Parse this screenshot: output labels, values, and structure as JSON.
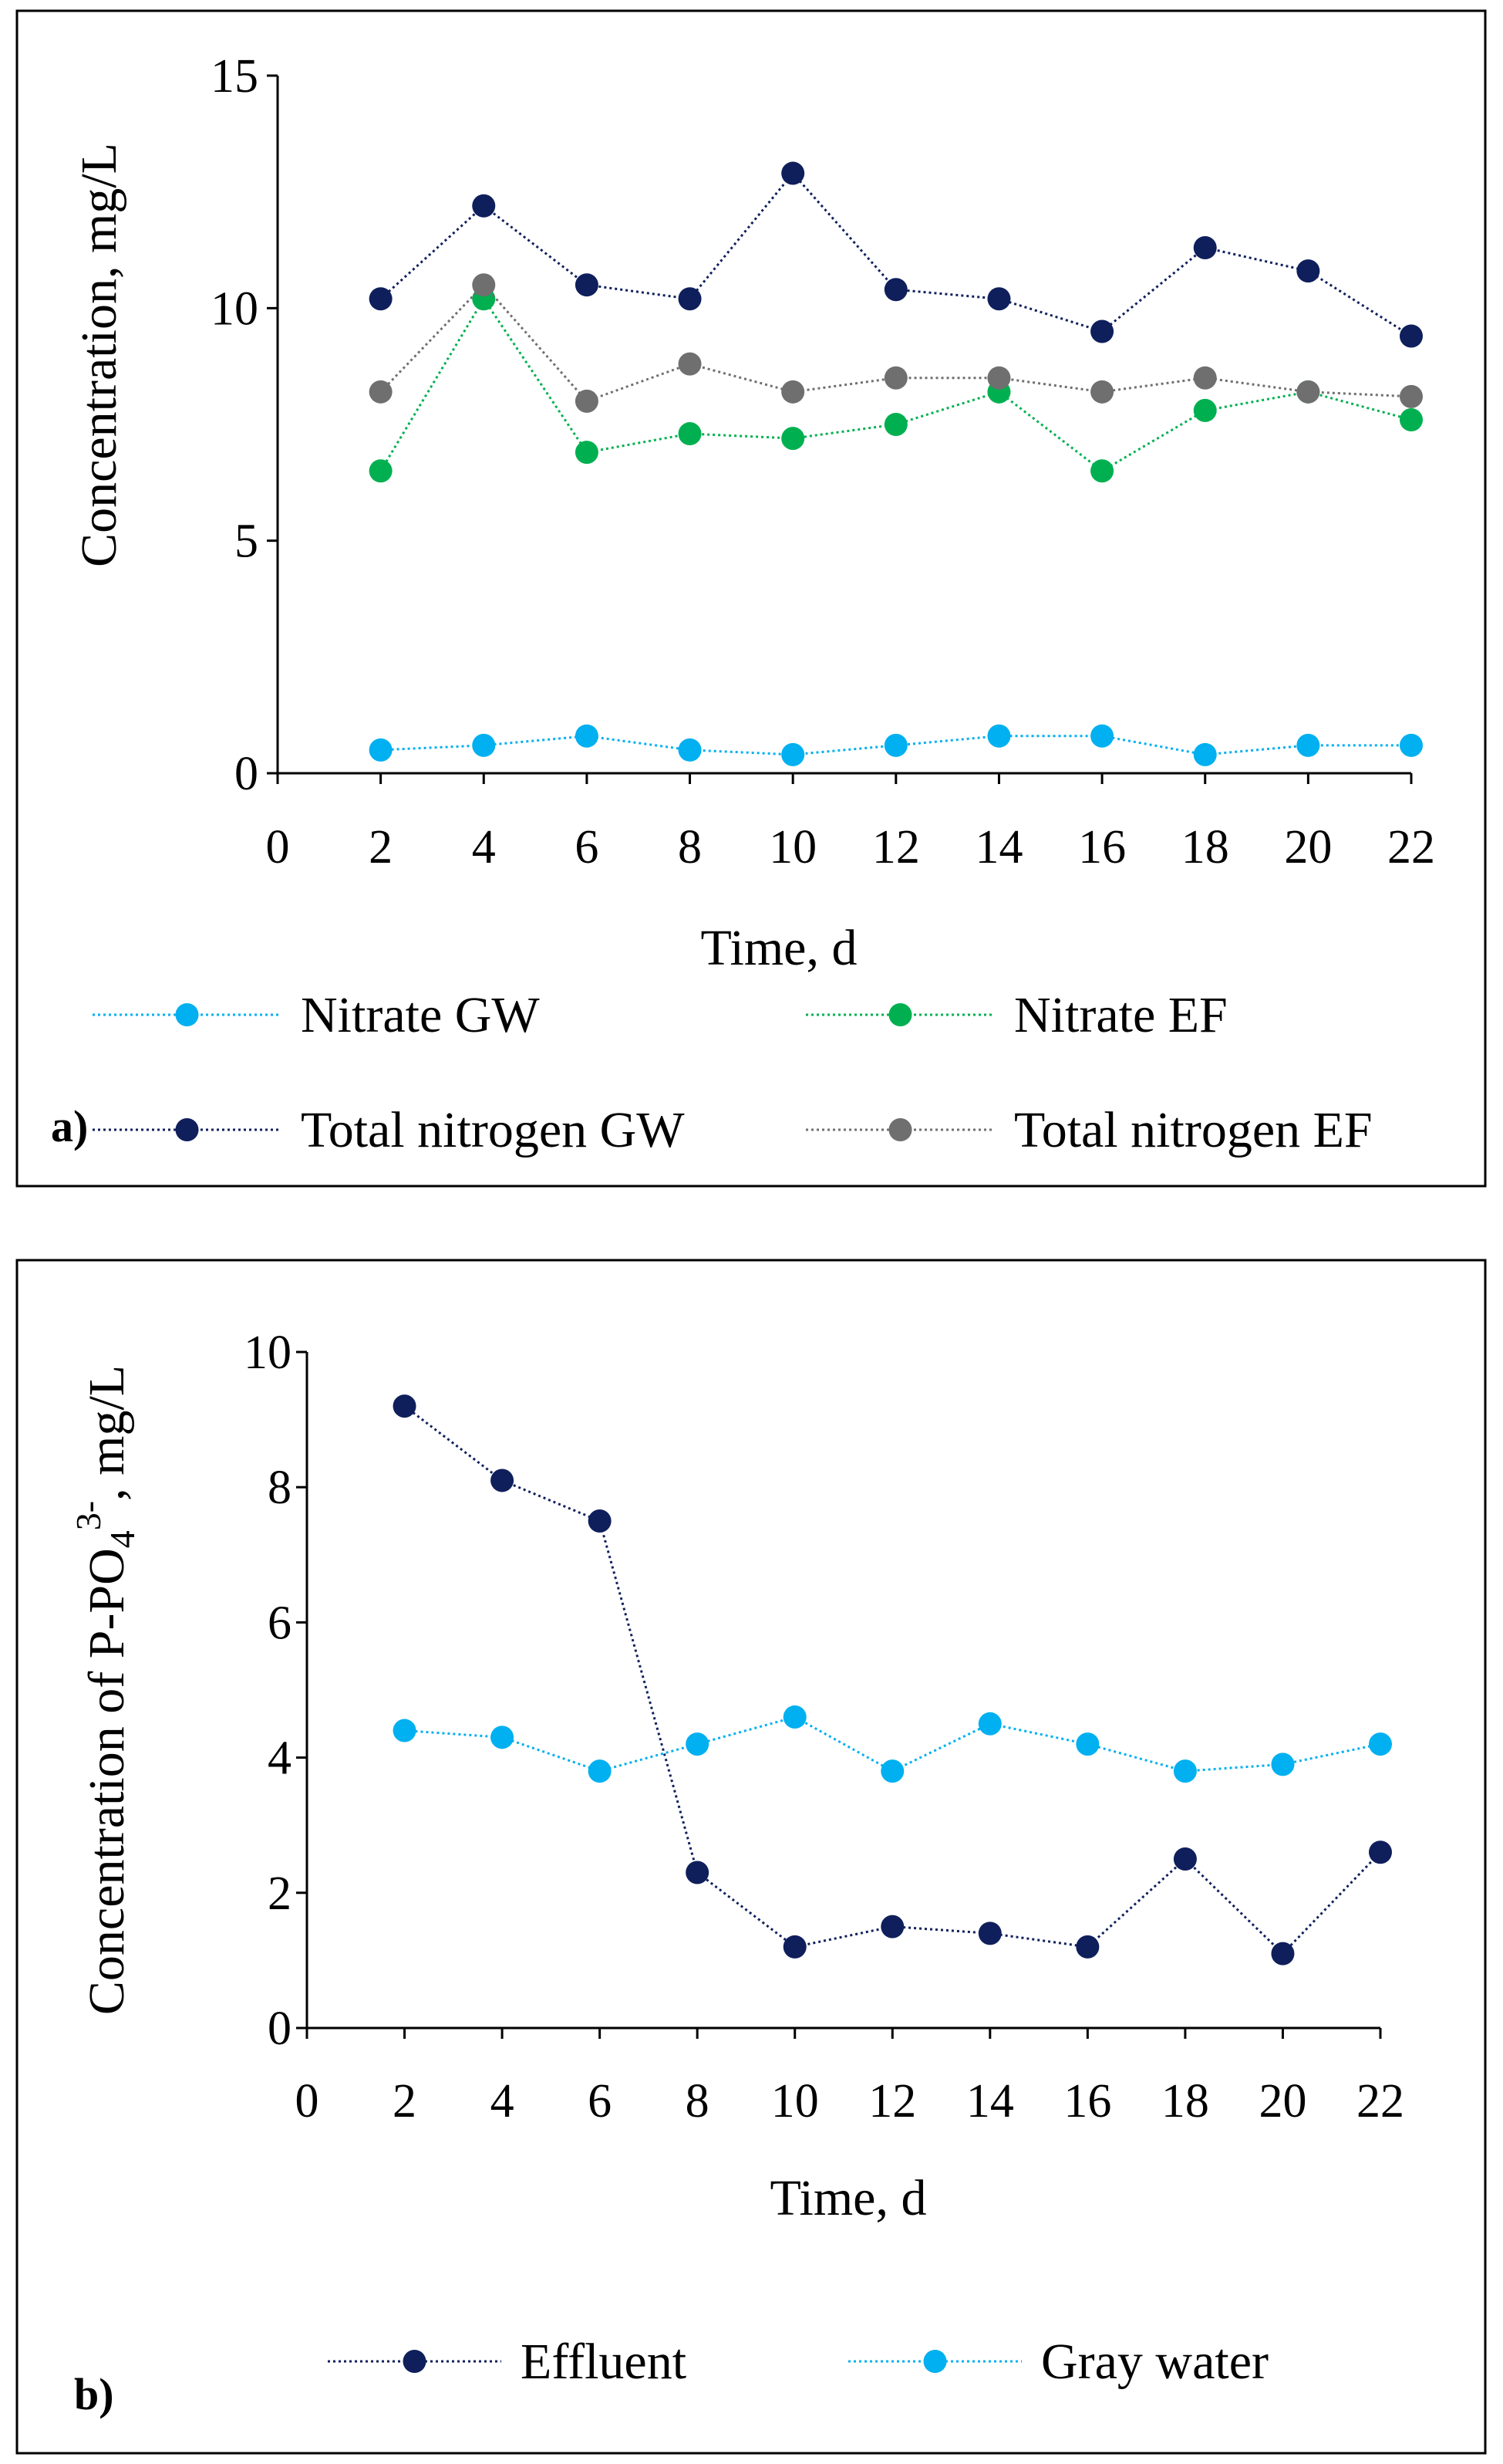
{
  "chart_data": [
    {
      "type": "line",
      "panel_label": "a)",
      "xlabel": "Time, d",
      "ylabel": "Concentration, mg/L",
      "xlim": [
        0,
        22
      ],
      "ylim": [
        0,
        15
      ],
      "x_ticks": [
        "0",
        "2",
        "4",
        "6",
        "8",
        "10",
        "12",
        "14",
        "16",
        "18",
        "20",
        "22"
      ],
      "y_ticks": [
        "0",
        "5",
        "10",
        "15"
      ],
      "grid": false,
      "legend_position": "bottom",
      "x": [
        2,
        4,
        6,
        8,
        10,
        12,
        14,
        16,
        18,
        20,
        22
      ],
      "series": [
        {
          "name": "Nitrate GW",
          "color": "#00b0f0",
          "values": [
            0.5,
            0.6,
            0.8,
            0.5,
            0.4,
            0.6,
            0.8,
            0.8,
            0.4,
            0.6,
            0.6
          ]
        },
        {
          "name": "Nitrate EF",
          "color": "#00b050",
          "values": [
            6.5,
            10.2,
            6.9,
            7.3,
            7.2,
            7.5,
            8.2,
            6.5,
            7.8,
            8.2,
            7.6
          ]
        },
        {
          "name": "Total nitrogen GW",
          "color": "#0f1f5c",
          "values": [
            10.2,
            12.2,
            10.5,
            10.2,
            12.9,
            10.4,
            10.2,
            9.5,
            11.3,
            10.8,
            9.4
          ]
        },
        {
          "name": "Total nitrogen EF",
          "color": "#6f6f6f",
          "values": [
            8.2,
            10.5,
            8.0,
            8.8,
            8.2,
            8.5,
            8.5,
            8.2,
            8.5,
            8.2,
            8.1
          ]
        }
      ]
    },
    {
      "type": "line",
      "panel_label": "b)",
      "xlabel": "Time, d",
      "ylabel_parts": [
        "Concentration of P-PO",
        "4",
        "3-",
        ", mg/L"
      ],
      "xlim": [
        0,
        22
      ],
      "ylim": [
        0,
        10
      ],
      "x_ticks": [
        "0",
        "2",
        "4",
        "6",
        "8",
        "10",
        "12",
        "14",
        "16",
        "18",
        "20",
        "22"
      ],
      "y_ticks": [
        "0",
        "2",
        "4",
        "6",
        "8",
        "10"
      ],
      "grid": false,
      "legend_position": "bottom",
      "x": [
        2,
        4,
        6,
        8,
        10,
        12,
        14,
        16,
        18,
        20,
        22
      ],
      "series": [
        {
          "name": "Effluent",
          "color": "#0f1f5c",
          "values": [
            9.2,
            8.1,
            7.5,
            2.3,
            1.2,
            1.5,
            1.4,
            1.2,
            2.5,
            1.1,
            2.6
          ]
        },
        {
          "name": "Gray water",
          "color": "#00b0f0",
          "values": [
            4.4,
            4.3,
            3.8,
            4.2,
            4.6,
            3.8,
            4.5,
            4.2,
            3.8,
            3.9,
            4.2
          ]
        }
      ]
    }
  ]
}
